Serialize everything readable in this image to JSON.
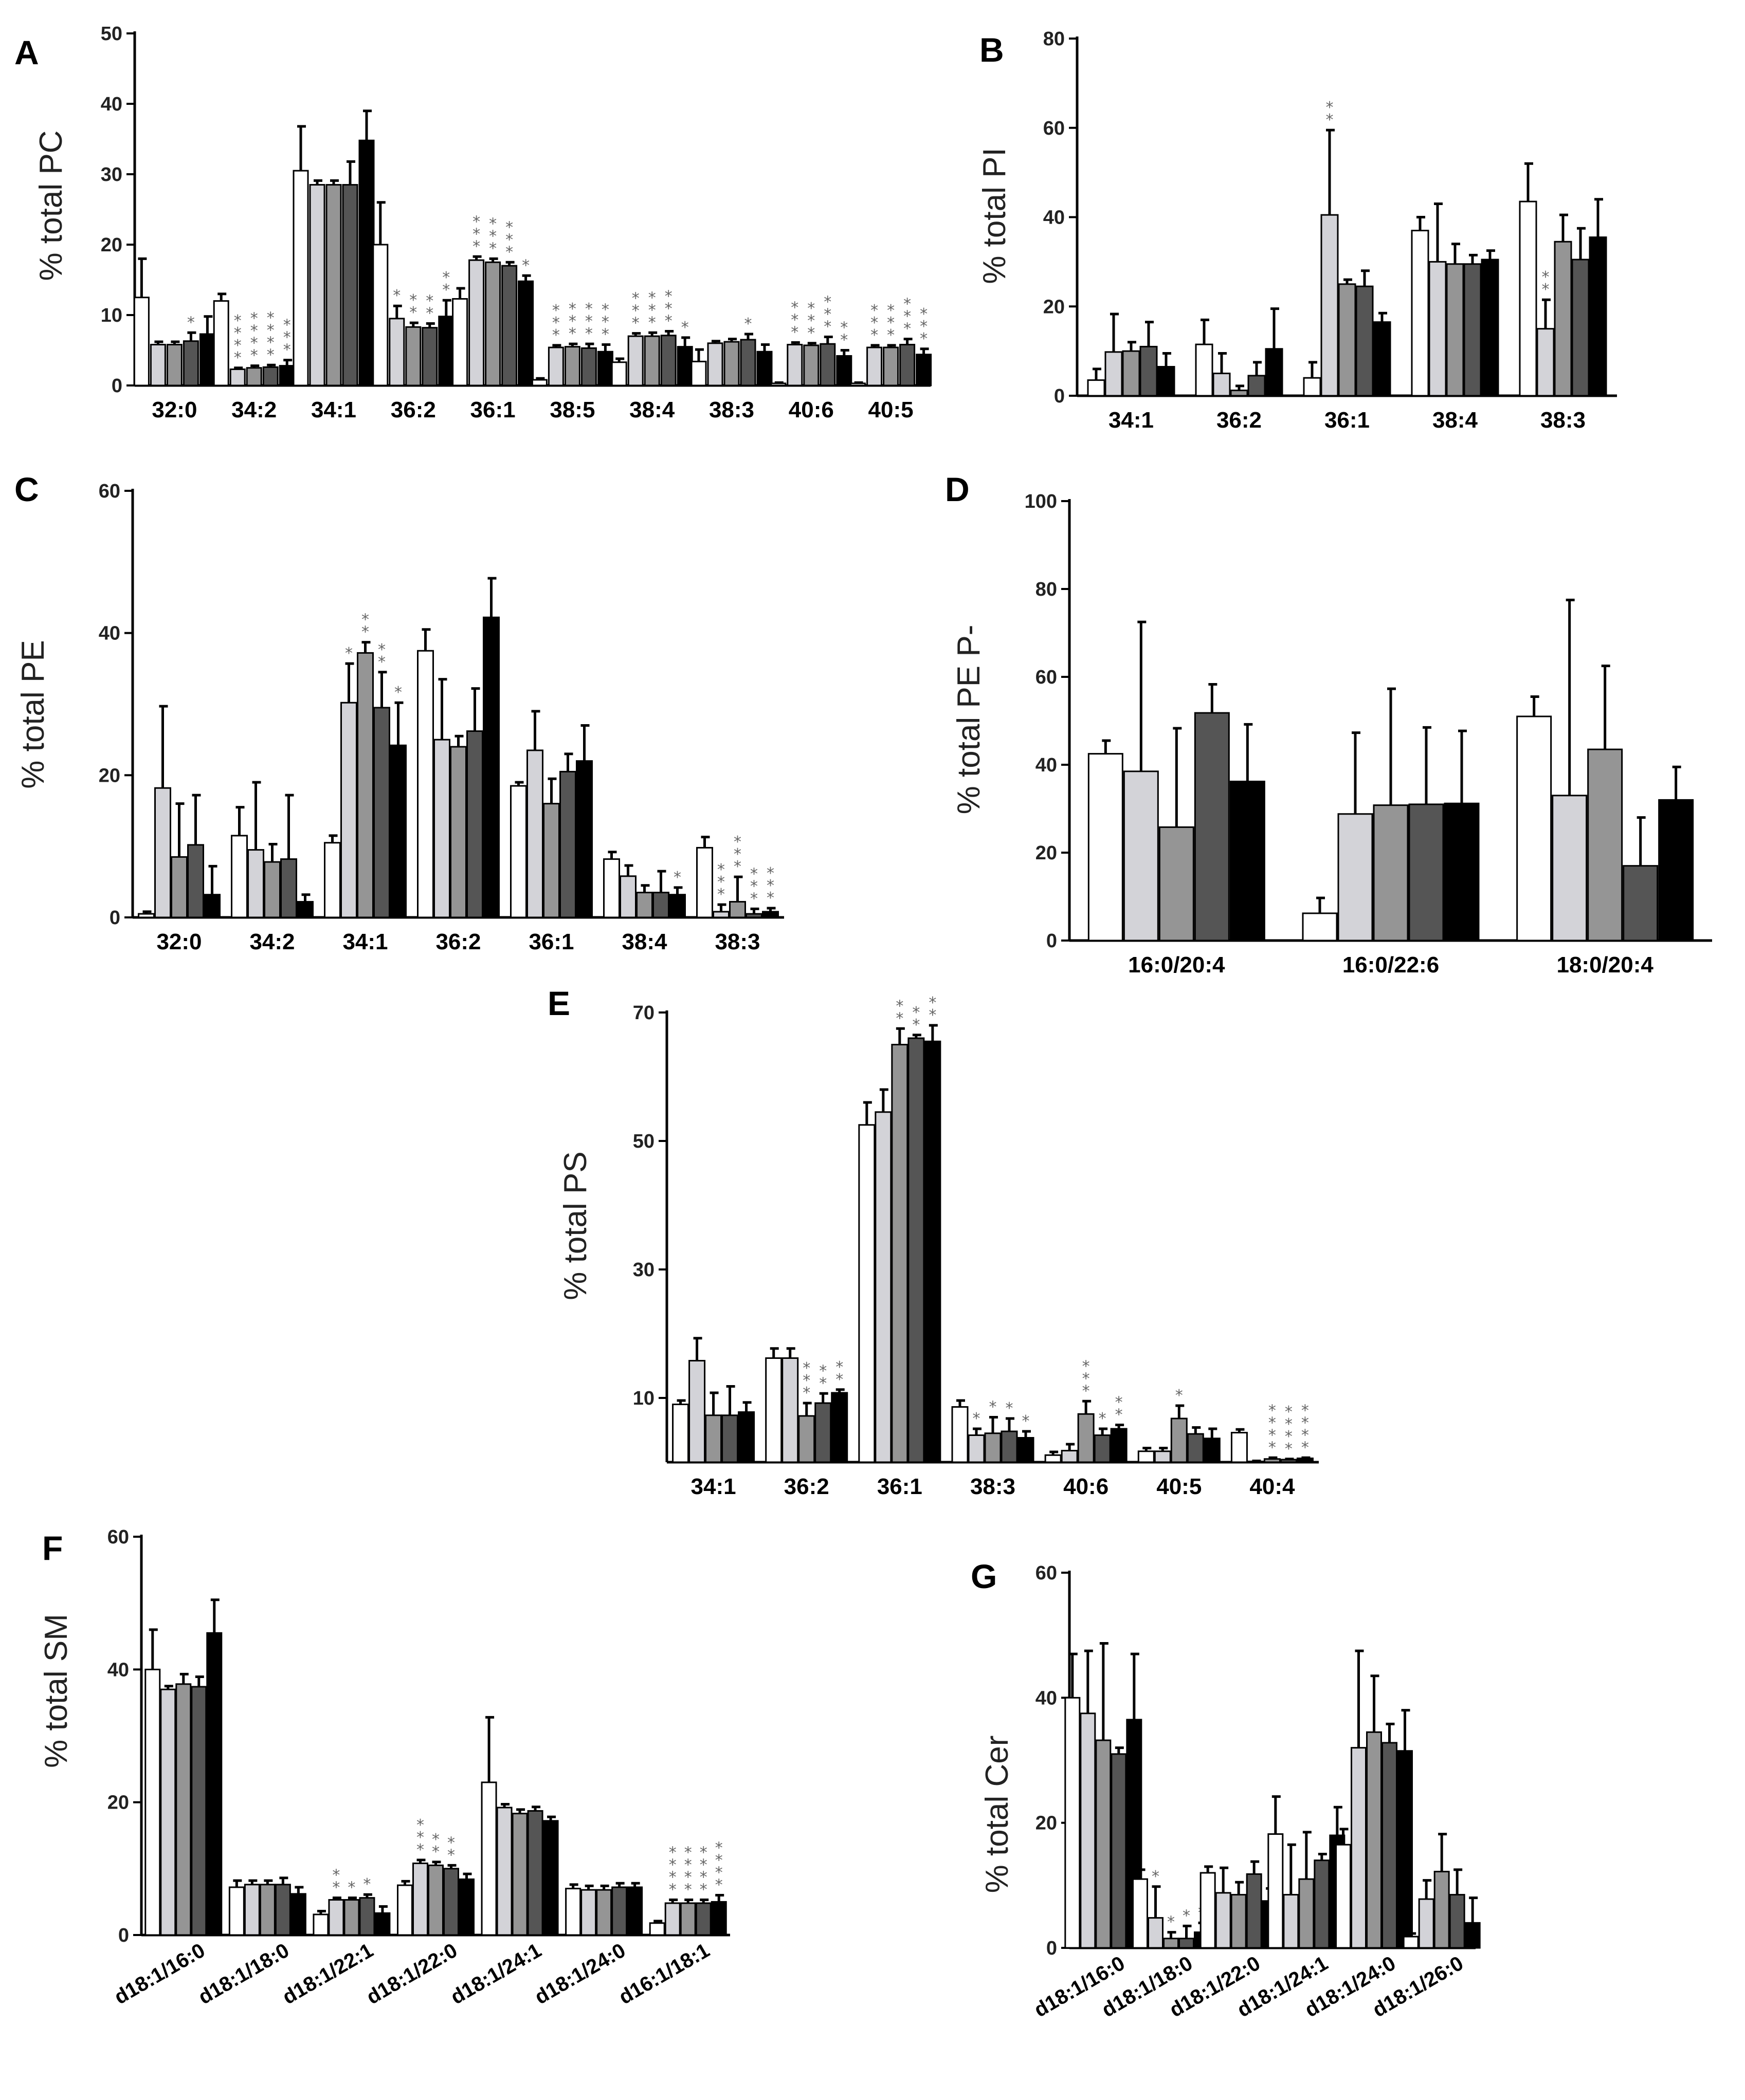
{
  "legend_fills": [
    "#ffffff",
    "#d3d3d8",
    "#959595",
    "#555555",
    "#000000"
  ],
  "chart_data": [
    {
      "panel": "A",
      "type": "bar",
      "ylabel": "% total PC",
      "ylim": [
        0,
        50
      ],
      "yticks": [
        "0",
        "10",
        "20",
        "30",
        "40",
        "50"
      ],
      "categories": [
        "32:0",
        "34:2",
        "34:1",
        "36:2",
        "36:1",
        "38:5",
        "38:4",
        "38:3",
        "40:6",
        "40:5"
      ],
      "values": [
        [
          12.5,
          5.8,
          5.8,
          6.3,
          7.3
        ],
        [
          12,
          2.3,
          2.5,
          2.6,
          2.8
        ],
        [
          30.5,
          28.5,
          28.5,
          28.5,
          34.8
        ],
        [
          20,
          9.5,
          8.3,
          8.2,
          9.8
        ],
        [
          12.3,
          17.8,
          17.5,
          17,
          14.8
        ],
        [
          0.8,
          5.4,
          5.5,
          5.3,
          4.8
        ],
        [
          3.3,
          7,
          7,
          7.1,
          5.5
        ],
        [
          3.4,
          6,
          6.2,
          6.5,
          4.8
        ],
        [
          0.3,
          5.8,
          5.7,
          5.9,
          4.2
        ],
        [
          0.3,
          5.4,
          5.4,
          5.8,
          4.4
        ]
      ],
      "errors": [
        [
          5.5,
          0.4,
          0.4,
          1.2,
          2.5
        ],
        [
          1,
          0.2,
          0.3,
          0.3,
          0.8
        ],
        [
          6.3,
          0.6,
          0.6,
          3.3,
          4.2
        ],
        [
          6,
          1.8,
          0.6,
          0.6,
          2.3
        ],
        [
          1.5,
          0.5,
          0.5,
          0.5,
          0.8
        ],
        [
          0.2,
          0.3,
          0.4,
          0.6,
          1
        ],
        [
          0.5,
          0.4,
          0.5,
          0.6,
          1.3
        ],
        [
          1.7,
          0.3,
          0.4,
          0.8,
          1
        ],
        [
          0.1,
          0.3,
          0.3,
          1,
          0.8
        ],
        [
          0.1,
          0.3,
          0.3,
          0.8,
          0.8
        ]
      ],
      "significance": [
        [
          "",
          "",
          "",
          "*",
          ""
        ],
        [
          "",
          "****",
          "****",
          "****",
          "***"
        ],
        [
          "",
          "",
          "",
          "",
          ""
        ],
        [
          "",
          "*",
          "**",
          "**",
          "**"
        ],
        [
          "",
          "***",
          "***",
          "***",
          "*"
        ],
        [
          "",
          "***",
          "***",
          "***",
          "***"
        ],
        [
          "",
          "***",
          "***",
          "***",
          "*"
        ],
        [
          "",
          "",
          "",
          "*",
          ""
        ],
        [
          "",
          "***",
          "***",
          "***",
          "**"
        ],
        [
          "",
          "***",
          "***",
          "***",
          "***"
        ]
      ]
    },
    {
      "panel": "B",
      "type": "bar",
      "ylabel": "% total PI",
      "ylim": [
        0,
        80
      ],
      "yticks": [
        "0",
        "20",
        "40",
        "60",
        "80"
      ],
      "categories": [
        "34:1",
        "36:2",
        "36:1",
        "38:4",
        "38:3"
      ],
      "values": [
        [
          3.5,
          9.8,
          10,
          11,
          6.5
        ],
        [
          11.5,
          5,
          1.2,
          4.5,
          10.5
        ],
        [
          4,
          40.5,
          25,
          24.5,
          16.5
        ],
        [
          37,
          30,
          29.5,
          29.5,
          30.5
        ],
        [
          43.5,
          15,
          34.5,
          30.5,
          35.5
        ]
      ],
      "errors": [
        [
          2.5,
          8.5,
          2,
          5.5,
          3
        ],
        [
          5.5,
          4.5,
          1,
          3,
          9
        ],
        [
          3.5,
          19,
          1,
          3.5,
          2
        ],
        [
          3,
          13,
          4.5,
          2,
          2
        ],
        [
          8.5,
          6.5,
          6,
          7,
          8.5
        ]
      ],
      "significance": [
        [
          "",
          "",
          "",
          "",
          ""
        ],
        [
          "",
          "",
          "",
          "",
          ""
        ],
        [
          "",
          "**",
          "",
          "",
          ""
        ],
        [
          "",
          "",
          "",
          "",
          ""
        ],
        [
          "",
          "**",
          "",
          "",
          ""
        ]
      ]
    },
    {
      "panel": "C",
      "type": "bar",
      "ylabel": "% total PE",
      "ylim": [
        0,
        60
      ],
      "yticks": [
        "0",
        "20",
        "40",
        "60"
      ],
      "categories": [
        "32:0",
        "34:2",
        "34:1",
        "36:2",
        "36:1",
        "38:4",
        "38:3"
      ],
      "values": [
        [
          0.5,
          18.2,
          8.5,
          10.2,
          3.2
        ],
        [
          11.5,
          9.5,
          7.8,
          8.2,
          2.2
        ],
        [
          10.5,
          30.2,
          37.2,
          29.5,
          24.2
        ],
        [
          37.5,
          25,
          24,
          26.2,
          42.2
        ],
        [
          18.5,
          23.5,
          16,
          20.5,
          22
        ],
        [
          8.2,
          5.8,
          3.5,
          3.5,
          3.2
        ],
        [
          9.8,
          0.8,
          2.2,
          0.5,
          0.8
        ]
      ],
      "errors": [
        [
          0.3,
          11.5,
          7.5,
          7,
          4
        ],
        [
          4,
          9.5,
          2.5,
          9,
          1
        ],
        [
          1,
          5.5,
          1.5,
          5,
          6
        ],
        [
          3,
          8.5,
          1.5,
          6,
          5.5
        ],
        [
          0.5,
          5.5,
          3.5,
          2.5,
          5
        ],
        [
          1,
          1.5,
          1,
          3,
          1
        ],
        [
          1.5,
          1,
          3.5,
          0.7,
          0.5
        ]
      ],
      "significance": [
        [
          "",
          "",
          "",
          "",
          ""
        ],
        [
          "",
          "",
          "",
          "",
          ""
        ],
        [
          "",
          "*",
          "**",
          "**",
          "*"
        ],
        [
          "",
          "",
          "",
          "",
          ""
        ],
        [
          "",
          "",
          "",
          "",
          ""
        ],
        [
          "",
          "",
          "",
          "",
          "*"
        ],
        [
          "",
          "***",
          "***",
          "***",
          "***"
        ]
      ]
    },
    {
      "panel": "D",
      "type": "bar",
      "ylabel": "% total PE P-",
      "ylim": [
        0,
        100
      ],
      "yticks": [
        "0",
        "20",
        "40",
        "60",
        "80",
        "100"
      ],
      "categories": [
        "16:0/20:4",
        "16:0/22:6",
        "18:0/20:4"
      ],
      "values": [
        [
          42.5,
          38.5,
          25.8,
          51.8,
          36.2
        ],
        [
          6.2,
          28.8,
          30.8,
          31,
          31.2
        ],
        [
          51,
          33,
          43.5,
          17,
          32
        ]
      ],
      "errors": [
        [
          3,
          34,
          22.5,
          6.5,
          13
        ],
        [
          3.5,
          18.5,
          26.5,
          17.5,
          16.5
        ],
        [
          4.5,
          44.5,
          19,
          11,
          7.5
        ]
      ],
      "significance": [
        [
          "",
          "",
          "",
          "",
          ""
        ],
        [
          "",
          "",
          "",
          "",
          ""
        ],
        [
          "",
          "",
          "",
          "",
          ""
        ]
      ]
    },
    {
      "panel": "E",
      "type": "bar",
      "ylabel": "% total PS",
      "ylim": [
        0,
        70
      ],
      "yticks": [
        "10",
        "30",
        "50",
        "70"
      ],
      "categories": [
        "34:1",
        "36:2",
        "36:1",
        "38:3",
        "40:6",
        "40:5",
        "40:4"
      ],
      "values": [
        [
          9,
          15.8,
          7.3,
          7.3,
          7.8
        ],
        [
          16.2,
          16.2,
          7.2,
          9.2,
          10.8
        ],
        [
          52.5,
          54.5,
          65,
          66,
          65.5
        ],
        [
          8.6,
          4.2,
          4.5,
          4.8,
          3.8
        ],
        [
          1.1,
          1.8,
          7.5,
          4.2,
          5.2
        ],
        [
          1.7,
          1.7,
          6.8,
          4.4,
          3.7
        ],
        [
          4.6,
          0.1,
          0.5,
          0.4,
          0.6
        ]
      ],
      "errors": [
        [
          0.6,
          3.5,
          3.5,
          4.5,
          1.5
        ],
        [
          1.5,
          1.5,
          2,
          1.5,
          0.5
        ],
        [
          3.5,
          3.5,
          2.5,
          0.5,
          2.5
        ],
        [
          1,
          1,
          2.5,
          2,
          1
        ],
        [
          0.5,
          1,
          2,
          1,
          0.6
        ],
        [
          0.5,
          0.5,
          2,
          1,
          1.5
        ],
        [
          0.5,
          0.1,
          0.2,
          0.1,
          0.1
        ]
      ],
      "significance": [
        [
          "",
          "",
          "",
          "",
          ""
        ],
        [
          "",
          "",
          "***",
          "**",
          "**"
        ],
        [
          "",
          "",
          "**",
          "**",
          "**"
        ],
        [
          "",
          "*",
          "*",
          "*",
          "*"
        ],
        [
          "",
          "",
          "***",
          "*",
          "**"
        ],
        [
          "",
          "",
          "*",
          "",
          ""
        ],
        [
          "",
          "",
          "****",
          "****",
          "****"
        ]
      ]
    },
    {
      "panel": "F",
      "type": "bar",
      "ylabel": "% total SM",
      "ylim": [
        0,
        60
      ],
      "yticks": [
        "0",
        "20",
        "40",
        "60"
      ],
      "categories": [
        "d18:1/16:0",
        "d18:1/18:0",
        "d18:1/22:1",
        "d18:1/22:0",
        "d18:1/24:1",
        "d18:1/24:0",
        "d16:1/18:1"
      ],
      "values": [
        [
          40,
          37,
          37.8,
          37.4,
          45.5
        ],
        [
          7.2,
          7.6,
          7.6,
          7.6,
          6.2
        ],
        [
          3.1,
          5.3,
          5.3,
          5.6,
          3.3
        ],
        [
          7.5,
          10.8,
          10.5,
          10,
          8.4
        ],
        [
          23,
          19.2,
          18.3,
          18.7,
          17.2
        ],
        [
          7,
          6.8,
          6.8,
          7.2,
          7.2
        ],
        [
          1.8,
          4.8,
          4.8,
          4.8,
          5
        ]
      ],
      "errors": [
        [
          6,
          0.5,
          1.5,
          1.5,
          5
        ],
        [
          1,
          0.6,
          0.6,
          1,
          1
        ],
        [
          0.5,
          0.3,
          0.3,
          0.5,
          1
        ],
        [
          0.6,
          0.5,
          0.5,
          0.5,
          0.8
        ],
        [
          9.8,
          0.5,
          0.6,
          0.6,
          0.6
        ],
        [
          0.6,
          0.6,
          0.6,
          0.6,
          0.6
        ],
        [
          0.3,
          0.5,
          0.5,
          0.5,
          1
        ]
      ],
      "significance": [
        [
          "",
          "",
          "",
          "",
          ""
        ],
        [
          "",
          "",
          "",
          "",
          ""
        ],
        [
          "",
          "**",
          "*",
          "*",
          ""
        ],
        [
          "",
          "***",
          "**",
          "**",
          ""
        ],
        [
          "",
          "",
          "",
          "",
          ""
        ],
        [
          "",
          "",
          "",
          "",
          ""
        ],
        [
          "",
          "****",
          "****",
          "****",
          "****"
        ]
      ]
    },
    {
      "panel": "G",
      "type": "bar",
      "ylabel": "% total Cer",
      "ylim": [
        0,
        60
      ],
      "yticks": [
        "0",
        "20",
        "40",
        "60"
      ],
      "categories": [
        "d18:1/16:0",
        "d18:1/18:0",
        "d18:1/22:0",
        "d18:1/24:1",
        "d18:1/24:0",
        "d18:1/26:0"
      ],
      "values": [
        [
          40,
          37.5,
          33.2,
          31,
          36.5
        ],
        [
          11,
          4.8,
          1.5,
          1.5,
          2.5
        ],
        [
          12,
          8.8,
          8.5,
          11.8,
          7.5
        ],
        [
          18.2,
          8.5,
          11,
          14,
          18
        ],
        [
          16.5,
          32,
          34.5,
          32.8,
          31.5
        ],
        [
          1.8,
          7.8,
          12.2,
          8.5,
          4
        ]
      ],
      "errors": [
        [
          7,
          10,
          15.5,
          1,
          10.5
        ],
        [
          1.5,
          5,
          1,
          2,
          1.5
        ],
        [
          1,
          4,
          2,
          2,
          2
        ],
        [
          6,
          8,
          7.5,
          1,
          4.5
        ],
        [
          2.5,
          15.5,
          9,
          3,
          6.5
        ],
        [
          0.5,
          3,
          6,
          4,
          4
        ]
      ],
      "significance": [
        [
          "",
          "",
          "",
          "",
          ""
        ],
        [
          "",
          "*",
          "*",
          "*",
          "*"
        ],
        [
          "",
          "",
          "",
          "",
          ""
        ],
        [
          "",
          "",
          "",
          "",
          ""
        ],
        [
          "",
          "",
          "",
          "",
          ""
        ],
        [
          "",
          "",
          "",
          "",
          ""
        ]
      ]
    }
  ]
}
